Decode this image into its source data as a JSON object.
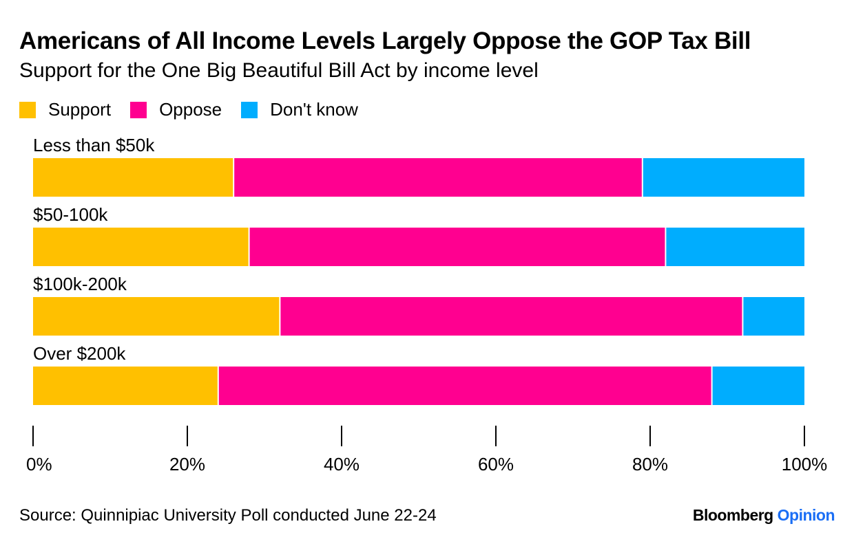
{
  "chart_data": {
    "type": "bar",
    "orientation": "horizontal",
    "stacked": true,
    "title": "Americans of All Income Levels Largely Oppose the GOP Tax Bill",
    "subtitle": "Support for the One Big Beautiful Bill Act by income level",
    "categories": [
      "Less than $50k",
      "$50-100k",
      "$100k-200k",
      "Over $200k"
    ],
    "series": [
      {
        "name": "Support",
        "color": "#ffc000",
        "values": [
          26,
          28,
          32,
          24
        ]
      },
      {
        "name": "Oppose",
        "color": "#ff0090",
        "values": [
          53,
          54,
          60,
          64
        ]
      },
      {
        "name": "Don't know",
        "color": "#00adfe",
        "values": [
          21,
          18,
          8,
          12
        ]
      }
    ],
    "xlim": [
      0,
      100
    ],
    "xticks": [
      0,
      20,
      40,
      60,
      80,
      100
    ],
    "xtick_labels": [
      "0%",
      "20%",
      "40%",
      "60%",
      "80%",
      "100%"
    ],
    "legend_position": "top-left",
    "grid": false
  },
  "source": "Source: Quinnipiac University Poll conducted June 22-24",
  "brand": {
    "name": "Bloomberg",
    "section": "Opinion"
  }
}
